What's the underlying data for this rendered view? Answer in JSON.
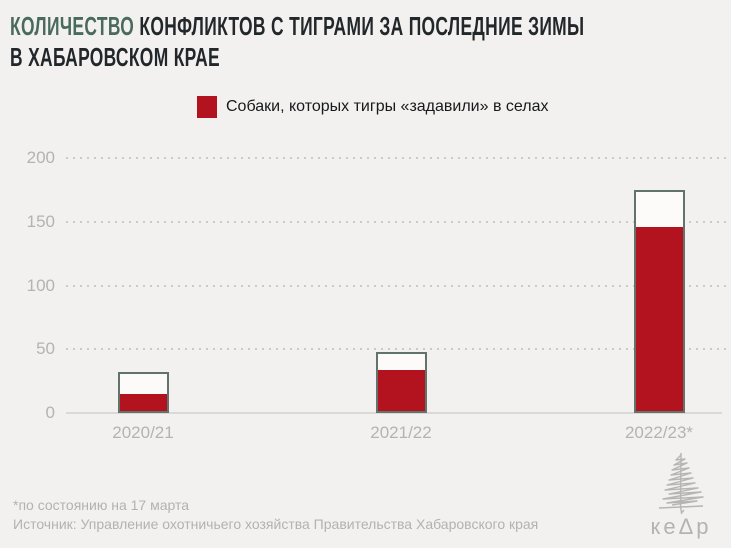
{
  "title": {
    "accent": "КОЛИЧЕСТВО",
    "line1_rest": " КОНФЛИКТОВ С ТИГРАМИ ЗА ПОСЛЕДНИЕ ЗИМЫ",
    "line2": "В ХАБАРОВСКОМ КРАЕ"
  },
  "legend": {
    "label": "Собаки, которых тигры «задавили» в селах",
    "swatch_color": "#b3131f"
  },
  "chart_data": {
    "type": "bar",
    "title": "КОЛИЧЕСТВО КОНФЛИКТОВ С ТИГРАМИ ЗА ПОСЛЕДНИЕ ЗИМЫ В ХАБАРОВСКОМ КРАЕ",
    "categories": [
      "2020/21",
      "2021/22",
      "2022/23*"
    ],
    "series": [
      {
        "id": "outline-total-conflicts",
        "legend_label": null,
        "style": "outline",
        "outline_color": "#62736b",
        "values": [
          32,
          48,
          175
        ]
      },
      {
        "id": "dogs-crushed-by-tigers",
        "legend_label": "Собаки, которых тигры «задавили» в селах",
        "style": "filled",
        "color": "#b3131f",
        "values": [
          15,
          34,
          146
        ]
      }
    ],
    "ylim": [
      0,
      200
    ],
    "y_ticks": [
      0,
      50,
      100,
      150,
      200
    ],
    "grid": {
      "horizontal": true,
      "style": "dotted"
    },
    "legend_position": "top-center",
    "xlabel": "",
    "ylabel": ""
  },
  "footnotes": {
    "asterisk": "*по состоянию на 17 марта",
    "source": "Источник: Управление охотничьего хозяйства Правительства Хабаровского края"
  },
  "logo": {
    "icon": "scribble-cedar-tree-icon",
    "wordmark": "кеΔр"
  },
  "colors": {
    "background": "#f3f1f0",
    "title_accent": "#4a6a60",
    "title_main": "#22272a",
    "bar_fill_red": "#b3131f",
    "bar_outline": "#62736b",
    "axis_text": "#b4b2b2",
    "footnote_text": "#b4b2b0",
    "gridline": "#ccc9c7"
  }
}
